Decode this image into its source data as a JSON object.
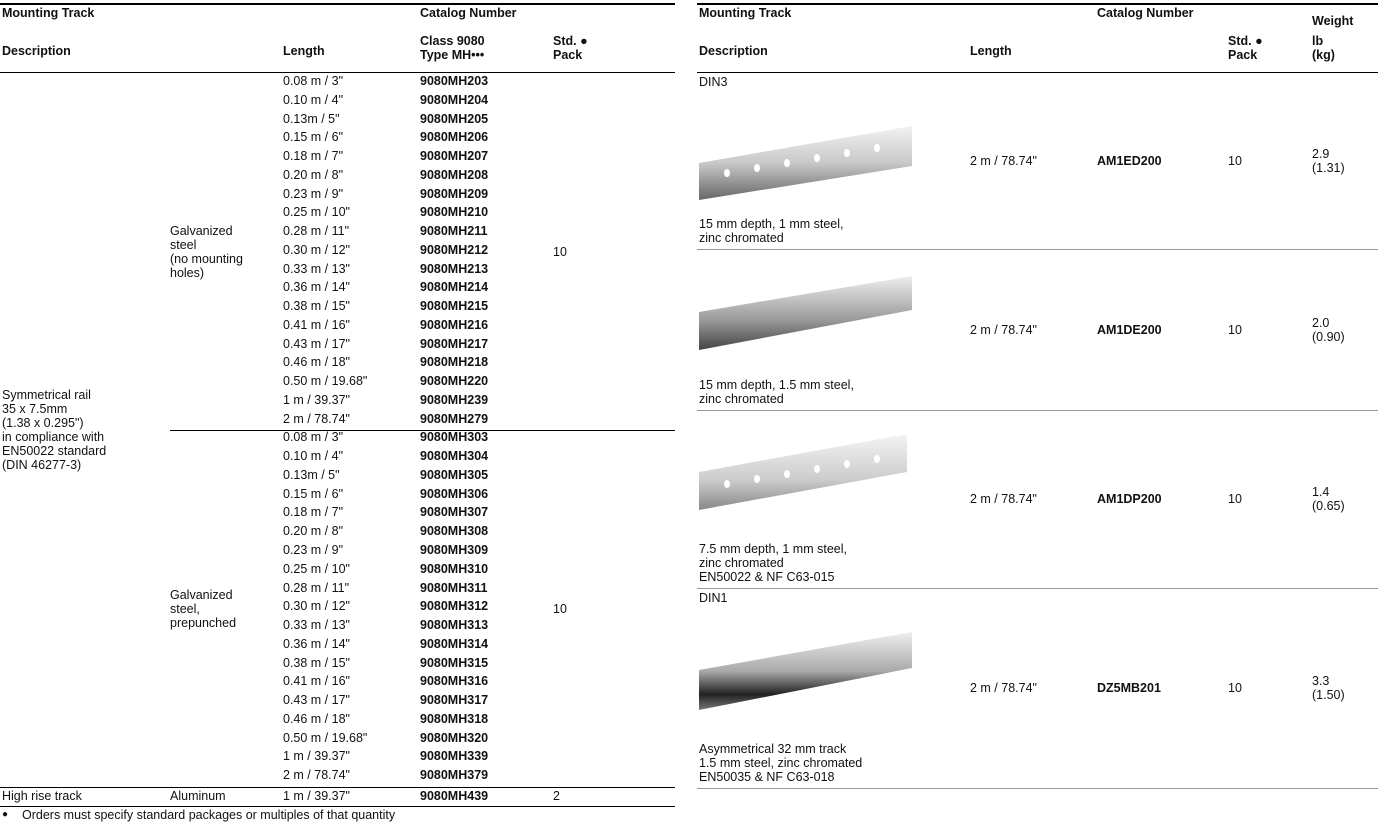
{
  "left": {
    "header": {
      "mounting_track": "Mounting Track",
      "catalog_number": "Catalog Number",
      "description": "Description",
      "length": "Length",
      "class": "Class 9080\nType MH•••",
      "std_pack": "Std. ●\nPack"
    },
    "description": "Symmetrical rail\n35 x 7.5mm\n(1.38 x 0.295\")\nin compliance with\nEN50022 standard\n(DIN 46277-3)",
    "groups": [
      {
        "material": "Galvanized\nsteel\n(no mounting\nholes)",
        "pack": "10",
        "rows": [
          [
            "0.08 m / 3\"",
            "9080MH203"
          ],
          [
            "0.10 m / 4\"",
            "9080MH204"
          ],
          [
            "0.13m / 5\"",
            "9080MH205"
          ],
          [
            "0.15 m / 6\"",
            "9080MH206"
          ],
          [
            "0.18 m / 7\"",
            "9080MH207"
          ],
          [
            "0.20 m / 8\"",
            "9080MH208"
          ],
          [
            "0.23 m / 9\"",
            "9080MH209"
          ],
          [
            "0.25 m / 10\"",
            "9080MH210"
          ],
          [
            "0.28 m / 11\"",
            "9080MH211"
          ],
          [
            "0.30 m / 12\"",
            "9080MH212"
          ],
          [
            "0.33 m / 13\"",
            "9080MH213"
          ],
          [
            "0.36 m / 14\"",
            "9080MH214"
          ],
          [
            "0.38 m / 15\"",
            "9080MH215"
          ],
          [
            "0.41 m / 16\"",
            "9080MH216"
          ],
          [
            "0.43 m / 17\"",
            "9080MH217"
          ],
          [
            "0.46 m / 18\"",
            "9080MH218"
          ],
          [
            "0.50 m / 19.68\"",
            "9080MH220"
          ],
          [
            "1 m / 39.37\"",
            "9080MH239"
          ],
          [
            "2 m / 78.74\"",
            "9080MH279"
          ]
        ]
      },
      {
        "material": "Galvanized\nsteel,\nprepunched",
        "pack": "10",
        "rows": [
          [
            "0.08 m / 3\"",
            "9080MH303"
          ],
          [
            "0.10 m / 4\"",
            "9080MH304"
          ],
          [
            "0.13m / 5\"",
            "9080MH305"
          ],
          [
            "0.15 m / 6\"",
            "9080MH306"
          ],
          [
            "0.18 m / 7\"",
            "9080MH307"
          ],
          [
            "0.20 m / 8\"",
            "9080MH308"
          ],
          [
            "0.23 m / 9\"",
            "9080MH309"
          ],
          [
            "0.25 m / 10\"",
            "9080MH310"
          ],
          [
            "0.28 m / 11\"",
            "9080MH311"
          ],
          [
            "0.30 m / 12\"",
            "9080MH312"
          ],
          [
            "0.33 m / 13\"",
            "9080MH313"
          ],
          [
            "0.36 m / 14\"",
            "9080MH314"
          ],
          [
            "0.38 m / 15\"",
            "9080MH315"
          ],
          [
            "0.41 m / 16\"",
            "9080MH316"
          ],
          [
            "0.43 m / 17\"",
            "9080MH317"
          ],
          [
            "0.46 m / 18\"",
            "9080MH318"
          ],
          [
            "0.50 m / 19.68\"",
            "9080MH320"
          ],
          [
            "1 m / 39.37\"",
            "9080MH339"
          ],
          [
            "2 m / 78.74\"",
            "9080MH379"
          ]
        ]
      }
    ],
    "high_rise": {
      "description": "High rise track",
      "material": "Aluminum",
      "length": "1 m / 39.37\"",
      "catalog": "9080MH439",
      "pack": "2"
    }
  },
  "right": {
    "header": {
      "mounting_track": "Mounting Track",
      "catalog_number": "Catalog Number",
      "weight": "Weight",
      "description": "Description",
      "length": "Length",
      "std_pack": "Std. ●\nPack",
      "unit": "lb\n(kg)"
    },
    "rows": [
      {
        "label": "DIN3",
        "caption": "15 mm depth, 1 mm steel,\nzinc chromated",
        "length": "2 m / 78.74\"",
        "catalog": "AM1ED200",
        "pack": "10",
        "weight": "2.9\n(1.31)"
      },
      {
        "caption": "15 mm depth, 1.5 mm steel,\nzinc chromated",
        "length": "2 m / 78.74\"",
        "catalog": "AM1DE200",
        "pack": "10",
        "weight": "2.0\n(0.90)"
      },
      {
        "caption": "7.5 mm depth, 1 mm steel,\nzinc chromated\nEN50022 & NF C63-015",
        "length": "2 m / 78.74\"",
        "catalog": "AM1DP200",
        "pack": "10",
        "weight": "1.4\n(0.65)"
      },
      {
        "label": "DIN1",
        "caption": "Asymmetrical 32 mm track\n1.5 mm steel, zinc chromated\nEN50035 & NF C63-018",
        "length": "2 m / 78.74\"",
        "catalog": "DZ5MB201",
        "pack": "10",
        "weight": "3.3\n(1.50)"
      }
    ]
  },
  "footnote": {
    "bullet": "●",
    "text": "Orders must specify standard packages or multiples of that quantity"
  }
}
